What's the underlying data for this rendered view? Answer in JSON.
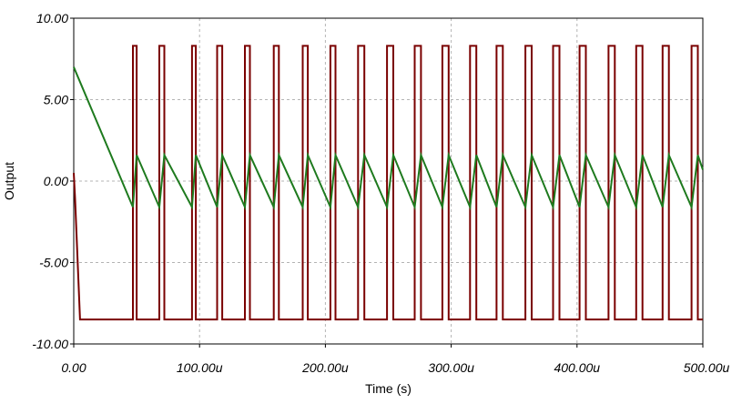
{
  "chart_data": {
    "type": "line",
    "title": "",
    "xlabel": "Time (s)",
    "ylabel": "Output",
    "xlim": [
      0,
      500
    ],
    "ylim": [
      -10,
      10
    ],
    "grid": true,
    "x_ticks": [
      0,
      100,
      200,
      300,
      400,
      500
    ],
    "x_tick_labels": [
      "0.00",
      "100.00u",
      "200.00u",
      "300.00u",
      "400.00u",
      "500.00u"
    ],
    "y_ticks": [
      10,
      5,
      0,
      -5,
      -10
    ],
    "y_tick_labels": [
      "10.00",
      "5.00",
      "0.00",
      "-5.00",
      "-10.00"
    ],
    "series": [
      {
        "color": "#7a0000",
        "x": [
          0,
          1,
          5,
          47,
          47,
          50,
          50,
          68,
          68,
          72,
          72,
          94,
          94,
          97,
          97,
          114,
          114,
          118,
          118,
          136,
          136,
          140,
          140,
          159,
          159,
          163,
          163,
          182,
          182,
          186,
          186,
          204,
          204,
          208,
          208,
          226,
          226,
          231,
          231,
          249,
          249,
          254,
          254,
          271,
          271,
          276,
          276,
          293,
          293,
          298,
          298,
          315,
          315,
          320,
          320,
          336,
          336,
          341,
          341,
          359,
          359,
          364,
          364,
          381,
          381,
          386,
          386,
          402,
          402,
          407,
          407,
          425,
          425,
          430,
          430,
          447,
          447,
          452,
          452,
          468,
          468,
          473,
          473,
          491,
          491,
          496,
          496,
          500
        ],
        "values": [
          0.5,
          -1,
          -8.5,
          -8.5,
          8.3,
          8.3,
          -8.5,
          -8.5,
          8.3,
          8.3,
          -8.5,
          -8.5,
          8.3,
          8.3,
          -8.5,
          -8.5,
          8.3,
          8.3,
          -8.5,
          -8.5,
          8.3,
          8.3,
          -8.5,
          -8.5,
          8.3,
          8.3,
          -8.5,
          -8.5,
          8.3,
          8.3,
          -8.5,
          -8.5,
          8.3,
          8.3,
          -8.5,
          -8.5,
          8.3,
          8.3,
          -8.5,
          -8.5,
          8.3,
          8.3,
          -8.5,
          -8.5,
          8.3,
          8.3,
          -8.5,
          -8.5,
          8.3,
          8.3,
          -8.5,
          -8.5,
          8.3,
          8.3,
          -8.5,
          -8.5,
          8.3,
          8.3,
          -8.5,
          -8.5,
          8.3,
          8.3,
          -8.5,
          -8.5,
          8.3,
          8.3,
          -8.5,
          -8.5,
          8.3,
          8.3,
          -8.5,
          -8.5,
          8.3,
          8.3,
          -8.5,
          -8.5,
          8.3,
          8.3,
          -8.5,
          -8.5,
          8.3,
          8.3,
          -8.5,
          -8.5,
          8.3,
          8.3,
          -8.5,
          -8.5
        ]
      },
      {
        "color": "#1e7a1e",
        "x": [
          0,
          47,
          50,
          68,
          72,
          94,
          97,
          114,
          118,
          136,
          140,
          159,
          163,
          182,
          186,
          204,
          208,
          226,
          231,
          249,
          254,
          271,
          276,
          293,
          298,
          315,
          320,
          336,
          341,
          359,
          364,
          381,
          386,
          402,
          407,
          425,
          430,
          447,
          452,
          468,
          473,
          491,
          496,
          500
        ],
        "values": [
          7.0,
          -1.6,
          1.6,
          -1.6,
          1.6,
          -1.6,
          1.6,
          -1.6,
          1.6,
          -1.6,
          1.6,
          -1.6,
          1.6,
          -1.6,
          1.6,
          -1.6,
          1.6,
          -1.6,
          1.6,
          -1.6,
          1.6,
          -1.6,
          1.6,
          -1.6,
          1.6,
          -1.6,
          1.6,
          -1.6,
          1.6,
          -1.6,
          1.6,
          -1.6,
          1.6,
          -1.6,
          1.6,
          -1.6,
          1.6,
          -1.6,
          1.6,
          -1.6,
          1.6,
          -1.6,
          1.6,
          0.7
        ]
      }
    ]
  }
}
